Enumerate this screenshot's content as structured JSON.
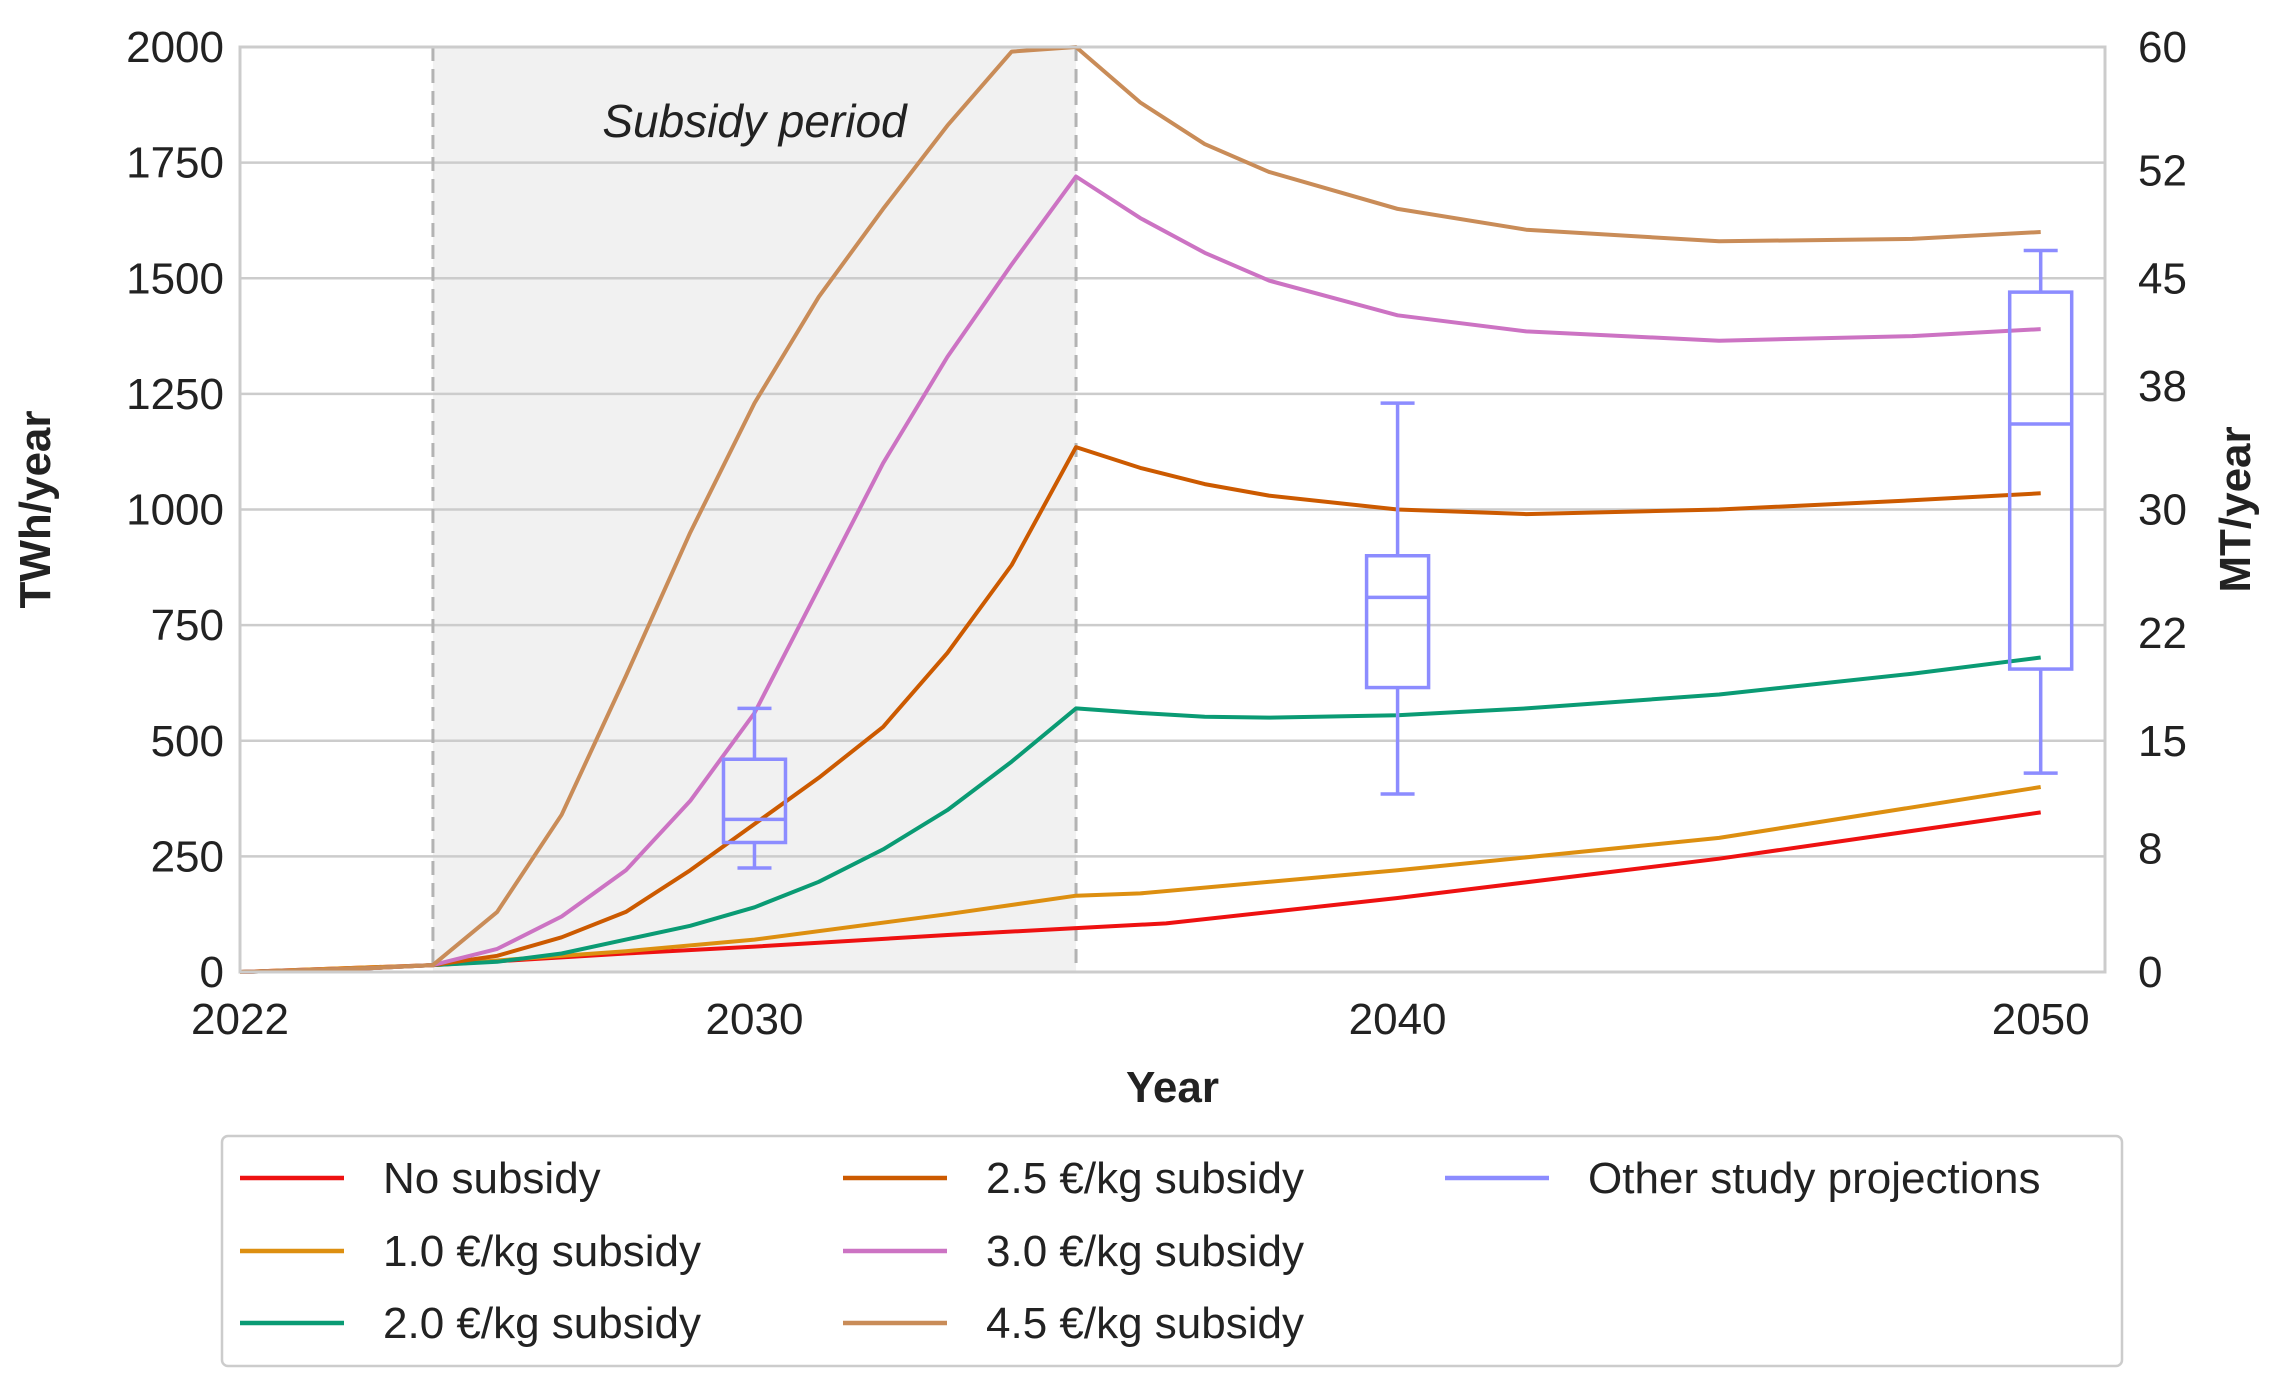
{
  "chart_data": {
    "type": "line",
    "xlabel": "Year",
    "ylabel": "TWh/year",
    "ylabel_right": "MT/year",
    "xlim": [
      2022,
      2051
    ],
    "ylim": [
      0,
      2000
    ],
    "ylim_right": [
      0,
      60
    ],
    "x_ticks": [
      2022,
      2030,
      2040,
      2050
    ],
    "y_ticks": [
      0,
      250,
      500,
      750,
      1000,
      1250,
      1500,
      1750,
      2000
    ],
    "y_right_ticks": [
      {
        "value": 0,
        "label": "0"
      },
      {
        "value": 8,
        "label": "8"
      },
      {
        "value": 15,
        "label": "15"
      },
      {
        "value": 22,
        "label": "22"
      },
      {
        "value": 30,
        "label": "30"
      },
      {
        "value": 38,
        "label": "38"
      },
      {
        "value": 45,
        "label": "45"
      },
      {
        "value": 52,
        "label": "52"
      },
      {
        "value": 60,
        "label": "60"
      }
    ],
    "grid": true,
    "annotations": [
      {
        "text": "Subsidy period",
        "span": [
          2025,
          2035
        ]
      }
    ],
    "legend_position": "bottom",
    "series": [
      {
        "name": "No subsidy",
        "color": "#ee1111",
        "x": [
          2022,
          2025,
          2028,
          2030,
          2033,
          2035,
          2036.4,
          2040,
          2045,
          2050
        ],
        "values": [
          0,
          15,
          40,
          55,
          80,
          95,
          105,
          160,
          245,
          345
        ]
      },
      {
        "name": "1.0 €/kg subsidy",
        "color": "#dd8f10",
        "x": [
          2022,
          2025,
          2028,
          2030,
          2033,
          2035,
          2036,
          2040,
          2045,
          2050
        ],
        "values": [
          0,
          15,
          45,
          70,
          125,
          165,
          170,
          220,
          290,
          400
        ]
      },
      {
        "name": "2.0 €/kg subsidy",
        "color": "#0a9b74",
        "x": [
          2022,
          2024,
          2025,
          2026,
          2027,
          2028,
          2029,
          2030,
          2031,
          2032,
          2033,
          2034,
          2035,
          2036,
          2037,
          2038,
          2040,
          2042,
          2045,
          2048,
          2050
        ],
        "values": [
          0,
          8,
          15,
          22,
          40,
          70,
          100,
          140,
          195,
          265,
          350,
          455,
          570,
          560,
          552,
          550,
          555,
          570,
          600,
          645,
          680
        ]
      },
      {
        "name": "2.5 €/kg subsidy",
        "color": "#cc5a00",
        "x": [
          2022,
          2024,
          2025,
          2026,
          2027,
          2028,
          2029,
          2030,
          2031,
          2032,
          2033,
          2034,
          2035,
          2036,
          2037,
          2038,
          2040,
          2042,
          2045,
          2048,
          2050
        ],
        "values": [
          0,
          8,
          15,
          35,
          75,
          130,
          220,
          320,
          420,
          530,
          690,
          880,
          1135,
          1090,
          1055,
          1030,
          1000,
          990,
          1000,
          1020,
          1035
        ]
      },
      {
        "name": "3.0 €/kg subsidy",
        "color": "#cc73c3",
        "x": [
          2022,
          2024,
          2025,
          2026,
          2027,
          2028,
          2029,
          2030,
          2031,
          2032,
          2033,
          2034,
          2035,
          2036,
          2037,
          2038,
          2040,
          2042,
          2045,
          2048,
          2050
        ],
        "values": [
          0,
          8,
          15,
          50,
          120,
          220,
          370,
          560,
          830,
          1100,
          1330,
          1530,
          1720,
          1630,
          1555,
          1495,
          1420,
          1385,
          1365,
          1375,
          1390
        ]
      },
      {
        "name": "4.5 €/kg subsidy",
        "color": "#c98c58",
        "x": [
          2022,
          2024,
          2025,
          2026,
          2027,
          2028,
          2029,
          2030,
          2031,
          2032,
          2033,
          2034,
          2035,
          2036,
          2037,
          2038,
          2040,
          2042,
          2045,
          2048,
          2050
        ],
        "values": [
          0,
          8,
          15,
          130,
          340,
          640,
          950,
          1230,
          1460,
          1650,
          1830,
          1990,
          2000,
          1880,
          1790,
          1730,
          1650,
          1605,
          1580,
          1585,
          1600
        ]
      }
    ],
    "boxplots": {
      "name": "Other study projections",
      "color": "#8c8cff",
      "boxes": [
        {
          "x": 2030,
          "whisker_low": 225,
          "q1": 280,
          "median": 330,
          "q3": 460,
          "whisker_high": 570
        },
        {
          "x": 2040,
          "whisker_low": 385,
          "q1": 615,
          "median": 810,
          "q3": 900,
          "whisker_high": 1230
        },
        {
          "x": 2050,
          "whisker_low": 430,
          "q1": 655,
          "median": 1185,
          "q3": 1470,
          "whisker_high": 1560
        }
      ]
    }
  }
}
